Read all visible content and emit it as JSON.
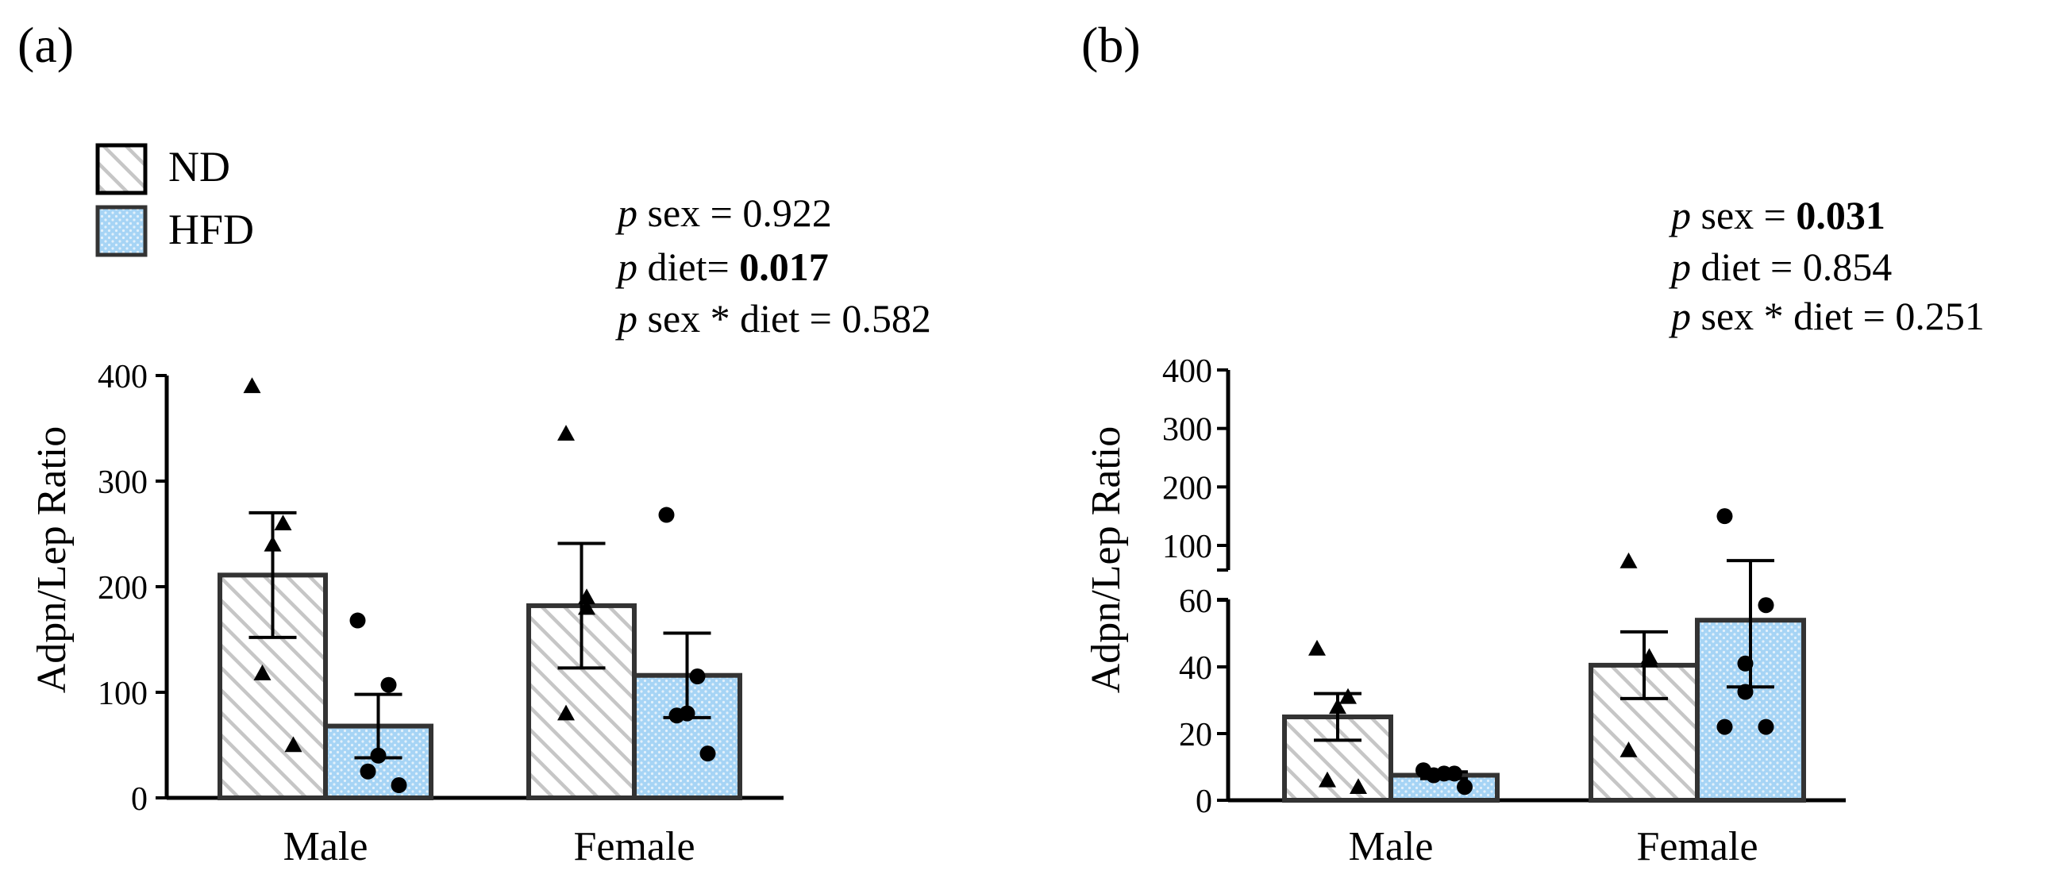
{
  "colors": {
    "nd_fill": "#ffffff",
    "nd_hatch": "#c6c6c6",
    "hfd_fill": "#a6d4f5",
    "hfd_dots": "#e3f1fb",
    "stroke": "#333333",
    "axis": "#000000"
  },
  "legend": {
    "items": [
      {
        "key": "nd",
        "label": "ND"
      },
      {
        "key": "hfd",
        "label": "HFD"
      }
    ]
  },
  "chart_data": [
    {
      "panel_label": "(a)",
      "type": "bar",
      "ylabel": "Adpn/Lep Ratio",
      "ylim": [
        0,
        400
      ],
      "yticks": [
        "0",
        "100",
        "200",
        "300",
        "400"
      ],
      "categories": [
        "Male",
        "Female"
      ],
      "stats": {
        "p": "p",
        "sex_label": " sex = ",
        "sex_value": "0.922",
        "diet_label": " diet= ",
        "diet_value": "0.017",
        "inter_label": " sex * diet = ",
        "inter_value": "0.582"
      },
      "series": [
        {
          "name": "ND",
          "marker": "triangle",
          "values": [
            211,
            182
          ],
          "sem": [
            59,
            59
          ],
          "points": [
            [
              390,
              260,
              240,
              118,
              50
            ],
            [
              345,
              190,
              180,
              80
            ]
          ]
        },
        {
          "name": "HFD",
          "marker": "circle",
          "values": [
            68,
            116
          ],
          "sem": [
            30,
            40
          ],
          "points": [
            [
              168,
              107,
              40,
              25,
              12
            ],
            [
              268,
              115,
              80,
              78,
              42
            ]
          ]
        }
      ]
    },
    {
      "panel_label": "(b)",
      "type": "bar",
      "ylabel": "Adpn/Lep Ratio",
      "axis_break": {
        "lower": [
          0,
          60
        ],
        "upper": [
          100,
          400
        ]
      },
      "yticks_lower": [
        "0",
        "20",
        "40",
        "60"
      ],
      "yticks_upper": [
        "100",
        "200",
        "300",
        "400"
      ],
      "categories": [
        "Male",
        "Female"
      ],
      "stats": {
        "p": "p",
        "sex_label": " sex = ",
        "sex_value": "0.031",
        "diet_label": " diet = ",
        "diet_value": "0.854",
        "inter_label": " sex * diet = ",
        "inter_value": "0.251"
      },
      "series": [
        {
          "name": "ND",
          "marker": "triangle",
          "values": [
            25,
            40.5
          ],
          "sem": [
            7,
            10
          ],
          "points": [
            [
              45.5,
              31,
              28,
              6,
              4
            ],
            [
              73,
              43,
              42,
              15
            ]
          ]
        },
        {
          "name": "HFD",
          "marker": "circle",
          "values": [
            7.5,
            54
          ],
          "sem": [
            1,
            20
          ],
          "points": [
            [
              9,
              8,
              8,
              7.5,
              4
            ],
            [
              150,
              58.5,
              41,
              32.5,
              22,
              22
            ]
          ]
        }
      ]
    }
  ]
}
